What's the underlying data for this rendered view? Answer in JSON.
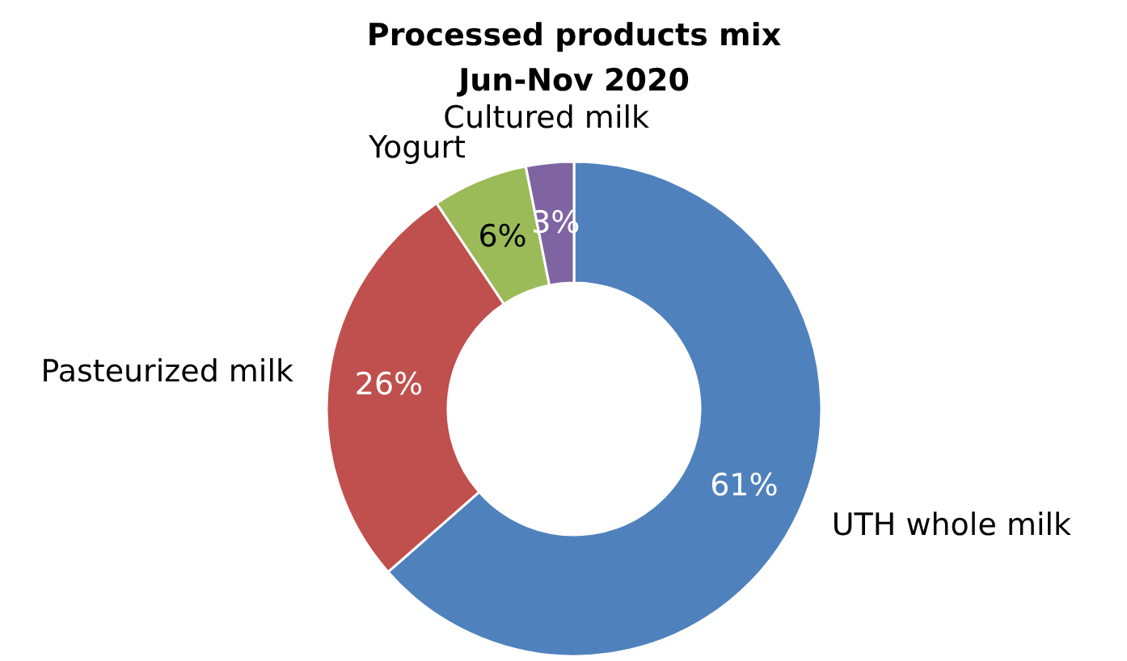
{
  "chart_data": {
    "type": "donut",
    "title": "Processed products mix\nJun-Nov 2020",
    "categories": [
      "UTH whole milk",
      "Pasteurized milk",
      "Yogurt",
      "Cultured milk"
    ],
    "values": [
      61,
      26,
      6,
      3
    ],
    "colors": [
      "#4f81bd",
      "#c0504d",
      "#9bbb59",
      "#8064a2"
    ],
    "value_labels": [
      "61%",
      "26%",
      "6%",
      "3%"
    ],
    "legend": false
  }
}
